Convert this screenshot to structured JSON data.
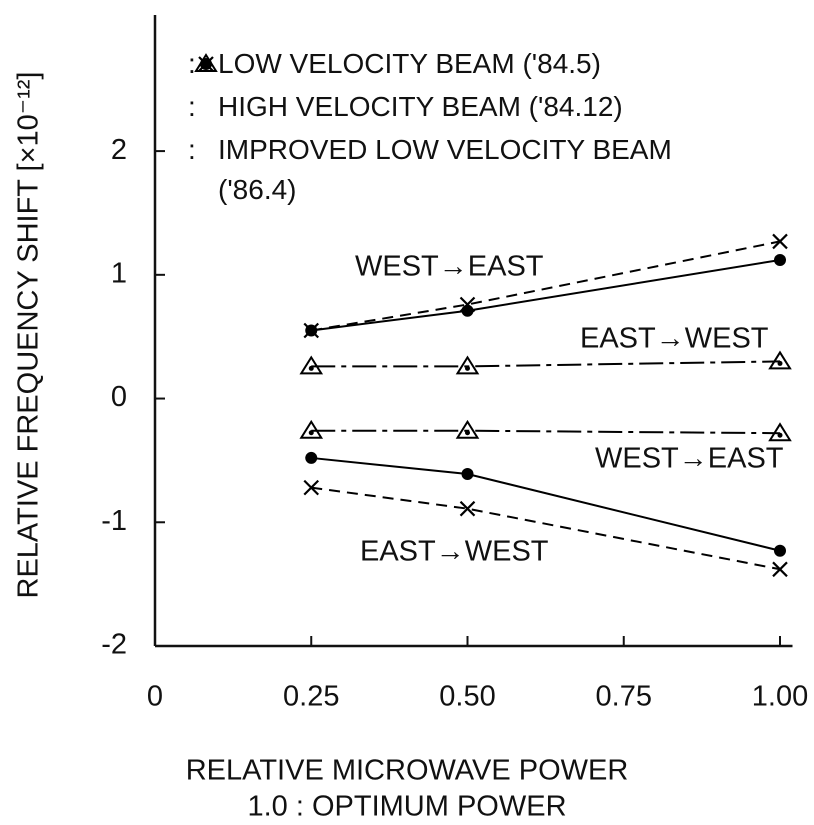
{
  "chart_data": {
    "type": "line",
    "xlabel": "RELATIVE MICROWAVE POWER",
    "note": "1.0 : OPTIMUM POWER",
    "ylabel": "RELATIVE FREQUENCY SHIFT [×10⁻¹²]",
    "legend_separator": ":",
    "x": [
      0.25,
      0.5,
      1.0
    ],
    "xlim": [
      0,
      1.02
    ],
    "ylim": [
      -2,
      3.1
    ],
    "xticks": [
      0,
      0.25,
      {
        "value": 0.5,
        "label": "0.50"
      },
      0.75,
      {
        "value": 1.0,
        "label": "1.00"
      }
    ],
    "yticks": [
      -2,
      -1,
      0,
      1,
      2
    ],
    "series": [
      {
        "name": "LOW VELOCITY BEAM ('84.5)",
        "color": "#000000",
        "marker": "dot",
        "line_style": "solid",
        "runs": [
          {
            "values": [
              0.55,
              0.71,
              1.12
            ]
          },
          {
            "values": [
              -0.48,
              -0.61,
              -1.23
            ]
          }
        ]
      },
      {
        "name": "HIGH VELOCITY BEAM ('84.12)",
        "color": "#000000",
        "marker": "x",
        "line_style": "dashed",
        "runs": [
          {
            "values": [
              0.55,
              0.76,
              1.27
            ]
          },
          {
            "values": [
              -0.72,
              -0.89,
              -1.38
            ]
          }
        ]
      },
      {
        "name": "IMPROVED LOW VELOCITY BEAM ('86.4)",
        "color": "#000000",
        "marker": "triangle",
        "line_style": "dashdot",
        "runs": [
          {
            "values": [
              0.26,
              0.26,
              0.3
            ]
          },
          {
            "values": [
              -0.26,
              -0.26,
              -0.28
            ]
          }
        ]
      }
    ],
    "annotations": [
      "WEST→EAST",
      "EAST→WEST",
      "WEST→EAST",
      "EAST→WEST"
    ]
  }
}
